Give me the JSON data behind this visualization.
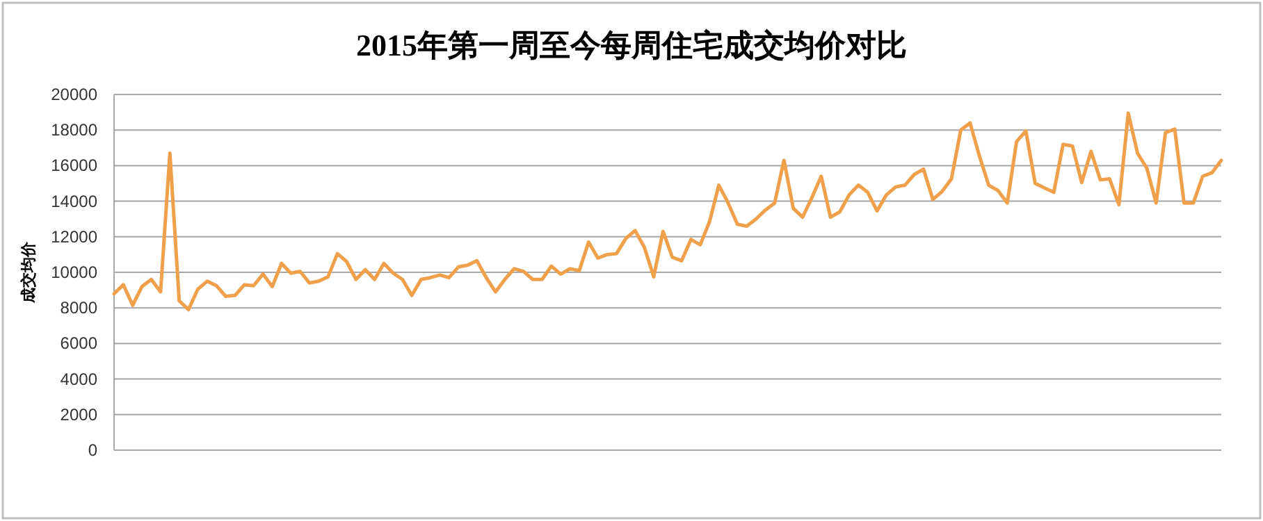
{
  "chart_data": {
    "type": "line",
    "title": "2015年第一周至今每周住宅成交均价对比",
    "ylabel": "成交均价",
    "categories": [
      null,
      null,
      null,
      null,
      null,
      null,
      null,
      null,
      null,
      null,
      null,
      null,
      null,
      null,
      null,
      null,
      null,
      null,
      null,
      null,
      null,
      null,
      null,
      null,
      null,
      null,
      null,
      null,
      null,
      null,
      null,
      null,
      null,
      null,
      null,
      null,
      null,
      null,
      null,
      null,
      null,
      null,
      null,
      null,
      null,
      null,
      null,
      null,
      null,
      null,
      null,
      null,
      null,
      null,
      null,
      null,
      null,
      null,
      null,
      null,
      null,
      null,
      null,
      null,
      null,
      null,
      null,
      null,
      null,
      null,
      null,
      null,
      null,
      null,
      null,
      null,
      null,
      null,
      null,
      null,
      null,
      null,
      null,
      null,
      null,
      null,
      null,
      null,
      null,
      null,
      null,
      null,
      null,
      null,
      null,
      null,
      null,
      null,
      null,
      null,
      null,
      null,
      null,
      null,
      null,
      null,
      null,
      null,
      null,
      null,
      null,
      null,
      null,
      null,
      null,
      null,
      null,
      null,
      null,
      null
    ],
    "series": [
      {
        "color": "#f0a04b",
        "values": [
          8800,
          9300,
          8150,
          9200,
          9600,
          8900,
          16700,
          8400,
          7900,
          9050,
          9500,
          9250,
          8650,
          8700,
          9300,
          9250,
          9900,
          9200,
          10500,
          9950,
          10050,
          9400,
          9500,
          9750,
          11050,
          10600,
          9600,
          10150,
          9600,
          10500,
          9950,
          9600,
          8700,
          9600,
          9700,
          9850,
          9700,
          10300,
          10400,
          10650,
          9700,
          8900,
          9600,
          10200,
          10050,
          9600,
          9600,
          10350,
          9900,
          10200,
          10100,
          11700,
          10800,
          11000,
          11050,
          11900,
          12350,
          11400,
          9750,
          12300,
          10850,
          10650,
          11850,
          11550,
          12850,
          14900,
          13900,
          12700,
          12600,
          13000,
          13500,
          13900,
          16300,
          13600,
          13100,
          14200,
          15400,
          13100,
          13400,
          14350,
          14900,
          14500,
          13450,
          14350,
          14800,
          14900,
          15500,
          15800,
          14100,
          14550,
          15250,
          18000,
          18400,
          16550,
          14900,
          14600,
          13900,
          17350,
          17950,
          15000,
          14750,
          14500,
          17200,
          17100,
          15050,
          16800,
          15200,
          15250,
          13800,
          18950,
          16700,
          15850,
          13900,
          17850,
          18050,
          13900,
          13900,
          15400,
          15600,
          16300
        ]
      }
    ],
    "ylim": [
      0,
      20000
    ],
    "yticks": [
      0,
      2000,
      4000,
      6000,
      8000,
      10000,
      12000,
      14000,
      16000,
      18000,
      20000
    ],
    "grid": "y"
  }
}
